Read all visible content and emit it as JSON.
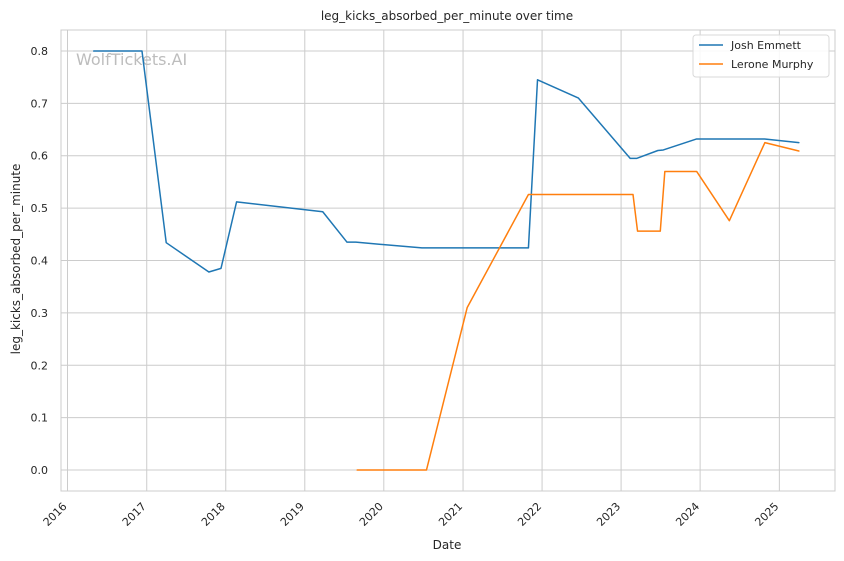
{
  "chart_data": {
    "type": "line",
    "title": "leg_kicks_absorbed_per_minute over time",
    "xlabel": "Date",
    "ylabel": "leg_kicks_absorbed_per_minute",
    "watermark": "WolfTickets.AI",
    "x_ticks": [
      "2016",
      "2017",
      "2018",
      "2019",
      "2020",
      "2021",
      "2022",
      "2023",
      "2024",
      "2025"
    ],
    "y_ticks": [
      "0.0",
      "0.1",
      "0.2",
      "0.3",
      "0.4",
      "0.5",
      "0.6",
      "0.7",
      "0.8"
    ],
    "xlim": [
      "2015-12-02",
      "2025-09-15"
    ],
    "ylim": [
      -0.04,
      0.84
    ],
    "grid": true,
    "legend_position": "upper right",
    "series": [
      {
        "name": "Josh Emmett",
        "color": "#1f77b4",
        "points": [
          [
            "2016-05-01",
            0.8
          ],
          [
            "2016-12-10",
            0.8
          ],
          [
            "2017-04-01",
            0.434
          ],
          [
            "2017-10-15",
            0.378
          ],
          [
            "2017-12-10",
            0.385
          ],
          [
            "2018-02-20",
            0.512
          ],
          [
            "2019-03-25",
            0.493
          ],
          [
            "2019-07-15",
            0.435
          ],
          [
            "2019-08-25",
            0.435
          ],
          [
            "2020-06-25",
            0.424
          ],
          [
            "2021-10-30",
            0.424
          ],
          [
            "2021-12-11",
            0.745
          ],
          [
            "2022-06-18",
            0.71
          ],
          [
            "2023-02-12",
            0.595
          ],
          [
            "2023-03-15",
            0.595
          ],
          [
            "2023-06-20",
            0.61
          ],
          [
            "2023-07-15",
            0.611
          ],
          [
            "2023-12-16",
            0.632
          ],
          [
            "2024-10-25",
            0.632
          ],
          [
            "2025-04-01",
            0.625
          ]
        ]
      },
      {
        "name": "Lerone Murphy",
        "color": "#ff7f0e",
        "points": [
          [
            "2019-08-31",
            0.0
          ],
          [
            "2020-07-16",
            0.0
          ],
          [
            "2021-01-20",
            0.31
          ],
          [
            "2021-10-30",
            0.526
          ],
          [
            "2023-02-25",
            0.526
          ],
          [
            "2023-03-18",
            0.456
          ],
          [
            "2023-07-01",
            0.456
          ],
          [
            "2023-07-22",
            0.57
          ],
          [
            "2023-12-16",
            0.57
          ],
          [
            "2024-05-15",
            0.476
          ],
          [
            "2024-10-26",
            0.625
          ],
          [
            "2025-04-01",
            0.609
          ]
        ]
      }
    ]
  }
}
